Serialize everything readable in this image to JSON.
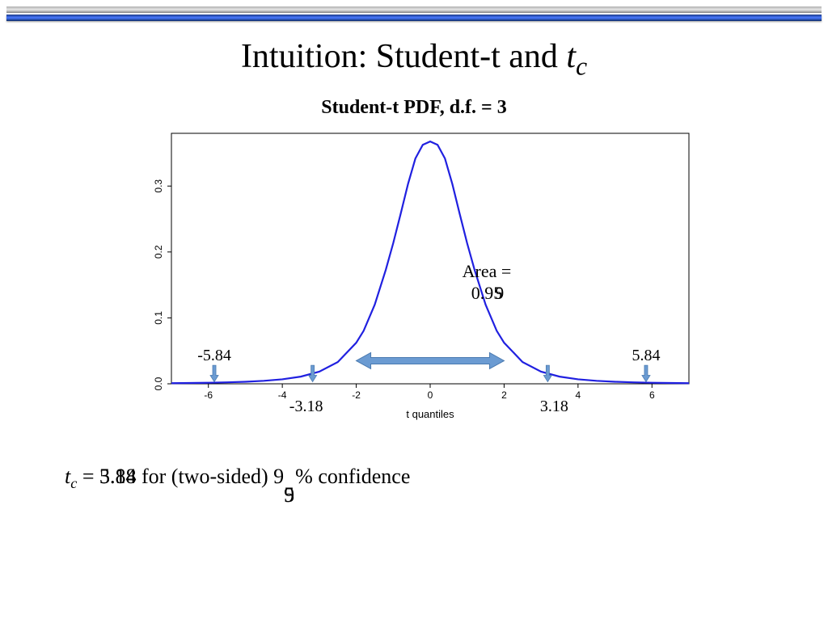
{
  "title_main": "Intuition: Student-t and ",
  "title_var": "t",
  "title_sub": "c",
  "chart": {
    "subtitle": "Student-t PDF, d.f. = 3",
    "xlabel": "t quantiles",
    "x_ticks": [
      "-6",
      "-4",
      "-2",
      "0",
      "2",
      "4",
      "6"
    ],
    "y_ticks": [
      "0.0",
      "0.1",
      "0.2",
      "0.3"
    ],
    "xlim": [
      -7,
      7
    ],
    "ylim": [
      0,
      0.38
    ],
    "curve_color": "#2020e0",
    "curve_width": 2.2,
    "background": "#ffffff",
    "border_color": "#000000",
    "tick_font_size": 12,
    "area_label_line1": "Area =",
    "area_label_line2": "0.95",
    "area_label_line2_overlay": "9",
    "arrow_color_fill": "#6b9bd2",
    "arrow_color_stroke": "#4a7ab0",
    "markers": [
      {
        "x_val": -5.84,
        "label": "-5.84",
        "label_side": "above"
      },
      {
        "x_val": -3.18,
        "label": "-3.18",
        "label_side": "below"
      },
      {
        "x_val": 3.18,
        "label": "3.18",
        "label_side": "below"
      },
      {
        "x_val": 5.84,
        "label": "5.84",
        "label_side": "above"
      }
    ],
    "t_pdf_points": [
      [
        -7,
        0.0009
      ],
      [
        -6.5,
        0.0012
      ],
      [
        -6,
        0.0016
      ],
      [
        -5.5,
        0.0022
      ],
      [
        -5,
        0.0031
      ],
      [
        -4.5,
        0.0045
      ],
      [
        -4,
        0.0068
      ],
      [
        -3.5,
        0.0109
      ],
      [
        -3,
        0.0184
      ],
      [
        -2.5,
        0.033
      ],
      [
        -2,
        0.0623
      ],
      [
        -1.8,
        0.0804
      ],
      [
        -1.5,
        0.12
      ],
      [
        -1.2,
        0.1731
      ],
      [
        -1,
        0.2133
      ],
      [
        -0.8,
        0.2575
      ],
      [
        -0.6,
        0.303
      ],
      [
        -0.4,
        0.3418
      ],
      [
        -0.2,
        0.3626
      ],
      [
        0,
        0.3676
      ],
      [
        0.2,
        0.3626
      ],
      [
        0.4,
        0.3418
      ],
      [
        0.6,
        0.303
      ],
      [
        0.8,
        0.2575
      ],
      [
        1,
        0.2133
      ],
      [
        1.2,
        0.1731
      ],
      [
        1.5,
        0.12
      ],
      [
        1.8,
        0.0804
      ],
      [
        2,
        0.0623
      ],
      [
        2.5,
        0.033
      ],
      [
        3,
        0.0184
      ],
      [
        3.5,
        0.0109
      ],
      [
        4,
        0.0068
      ],
      [
        4.5,
        0.0045
      ],
      [
        5,
        0.0031
      ],
      [
        5.5,
        0.0022
      ],
      [
        6,
        0.0016
      ],
      [
        6.5,
        0.0012
      ],
      [
        7,
        0.0009
      ]
    ]
  },
  "footer": {
    "prefix_var": "t",
    "prefix_sub": "c",
    "eq": " = ",
    "val1": "3.18",
    "val2": "5.84",
    "mid": " for (two-sided) 9",
    "conf1": "5",
    "conf2": "9",
    "suffix": "% confidence"
  }
}
